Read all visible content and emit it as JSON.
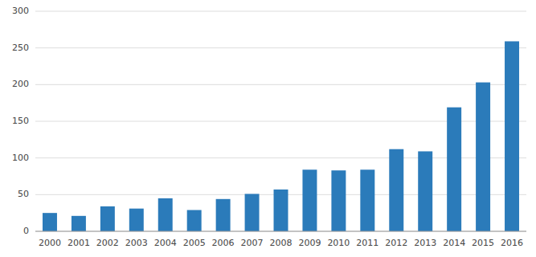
{
  "chart_data": {
    "type": "bar",
    "categories": [
      "2000",
      "2001",
      "2002",
      "2003",
      "2004",
      "2005",
      "2006",
      "2007",
      "2008",
      "2009",
      "2010",
      "2011",
      "2012",
      "2013",
      "2014",
      "2015",
      "2016"
    ],
    "values": [
      25,
      21,
      34,
      31,
      45,
      29,
      44,
      51,
      57,
      84,
      83,
      84,
      112,
      109,
      169,
      203,
      259
    ],
    "color": "#2b7bba",
    "ylim": [
      0,
      300
    ],
    "yticks": [
      0,
      50,
      100,
      150,
      200,
      250,
      300
    ],
    "grid": true
  }
}
